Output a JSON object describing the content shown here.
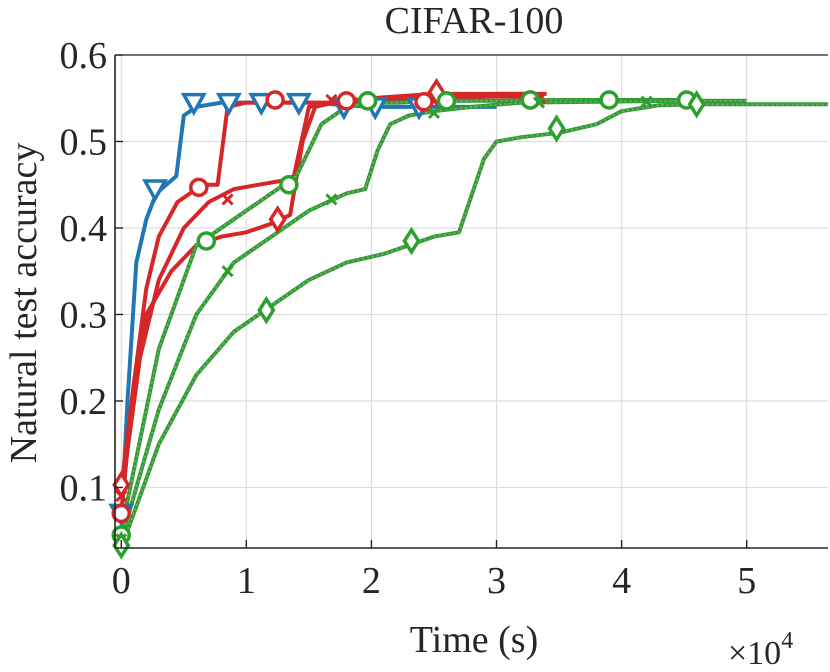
{
  "chart_data": {
    "type": "line",
    "title": "CIFAR-100",
    "xlabel": "Time (s)",
    "ylabel": "Natural test accuracy",
    "x_multiplier_label": "×10",
    "x_multiplier_exponent": "4",
    "xlim": [
      -0.05,
      5.65
    ],
    "ylim": [
      0.03,
      0.6
    ],
    "x_ticks": [
      0,
      1,
      2,
      3,
      4,
      5
    ],
    "x_tick_labels": [
      "0",
      "1",
      "2",
      "3",
      "4",
      "5"
    ],
    "y_ticks": [
      0.1,
      0.2,
      0.3,
      0.4,
      0.5,
      0.6
    ],
    "y_tick_labels": [
      "0.1",
      "0.2",
      "0.3",
      "0.4",
      "0.5",
      "0.6"
    ],
    "grid": true,
    "colors": {
      "blue": "#1f77b4",
      "red": "#d62728",
      "green": "#2ca02c",
      "axis": "#262626",
      "grid": "#dddddd"
    },
    "series": [
      {
        "name": "blue-triangle",
        "color": "#1f77b4",
        "style": "solid",
        "marker": "triangle",
        "x": [
          0,
          0.05,
          0.12,
          0.2,
          0.28,
          0.36,
          0.44,
          0.5,
          0.6,
          0.8,
          1.0,
          1.5,
          2.0,
          2.5,
          3.0
        ],
        "y": [
          0.06,
          0.2,
          0.36,
          0.41,
          0.44,
          0.45,
          0.46,
          0.53,
          0.54,
          0.545,
          0.545,
          0.545,
          0.54,
          0.54,
          0.54
        ],
        "marker_x": [
          0.0,
          0.27,
          0.58,
          0.86,
          1.12,
          1.42,
          1.78,
          2.03,
          2.38
        ],
        "marker_y": [
          0.07,
          0.445,
          0.545,
          0.545,
          0.545,
          0.545,
          0.54,
          0.54,
          0.54
        ]
      },
      {
        "name": "red-circle",
        "color": "#d62728",
        "style": "solid",
        "marker": "circle",
        "x": [
          0,
          0.1,
          0.2,
          0.3,
          0.45,
          0.6,
          0.7,
          0.77,
          0.85,
          1.0,
          1.3,
          1.8,
          2.5,
          3.0,
          3.4
        ],
        "y": [
          0.07,
          0.22,
          0.33,
          0.39,
          0.43,
          0.445,
          0.45,
          0.45,
          0.54,
          0.545,
          0.545,
          0.545,
          0.55,
          0.555,
          0.555
        ],
        "marker_x": [
          0.0,
          0.62,
          1.23,
          1.8,
          2.42,
          3.27
        ],
        "marker_y": [
          0.07,
          0.447,
          0.548,
          0.547,
          0.546,
          0.548
        ]
      },
      {
        "name": "red-cross",
        "color": "#d62728",
        "style": "solid",
        "marker": "cross",
        "x": [
          0,
          0.15,
          0.3,
          0.5,
          0.7,
          0.9,
          1.1,
          1.3,
          1.38,
          1.5,
          1.7,
          2.0,
          2.5,
          3.0,
          3.3
        ],
        "y": [
          0.09,
          0.25,
          0.34,
          0.4,
          0.43,
          0.445,
          0.45,
          0.455,
          0.46,
          0.54,
          0.545,
          0.548,
          0.55,
          0.552,
          0.552
        ],
        "marker_x": [
          0.0,
          0.85,
          1.68,
          2.55,
          3.35
        ],
        "marker_y": [
          0.09,
          0.433,
          0.548,
          0.549,
          0.55
        ]
      },
      {
        "name": "red-diamond",
        "color": "#d62728",
        "style": "solid",
        "marker": "diamond",
        "x": [
          0,
          0.1,
          0.2,
          0.4,
          0.6,
          0.8,
          1.0,
          1.2,
          1.35,
          1.45,
          1.55,
          1.7,
          2.0,
          2.5,
          3.0,
          3.3
        ],
        "y": [
          0.1,
          0.22,
          0.3,
          0.35,
          0.38,
          0.39,
          0.395,
          0.405,
          0.415,
          0.5,
          0.54,
          0.545,
          0.55,
          0.555,
          0.555,
          0.555
        ],
        "marker_x": [
          0.0,
          1.25,
          2.52
        ],
        "marker_y": [
          0.103,
          0.41,
          0.557
        ]
      },
      {
        "name": "green-circle",
        "color": "#2ca02c",
        "style": "dotted",
        "marker": "circle",
        "x": [
          0,
          0.3,
          0.6,
          0.9,
          1.2,
          1.4,
          1.6,
          1.8,
          2.0,
          2.2,
          2.4,
          2.6,
          3.0,
          3.5,
          4.0,
          4.6
        ],
        "y": [
          0.05,
          0.26,
          0.38,
          0.41,
          0.44,
          0.46,
          0.52,
          0.54,
          0.545,
          0.545,
          0.546,
          0.547,
          0.547,
          0.548,
          0.548,
          0.548
        ],
        "marker_x": [
          0.0,
          0.68,
          1.34,
          1.97,
          2.6,
          3.27,
          3.9,
          4.52
        ],
        "marker_y": [
          0.045,
          0.385,
          0.45,
          0.547,
          0.547,
          0.548,
          0.548,
          0.548
        ]
      },
      {
        "name": "green-cross",
        "color": "#2ca02c",
        "style": "dotted",
        "marker": "cross",
        "x": [
          0,
          0.3,
          0.6,
          0.9,
          1.2,
          1.5,
          1.8,
          1.95,
          2.05,
          2.15,
          2.3,
          2.5,
          2.8,
          3.2,
          3.8,
          4.5,
          5.0
        ],
        "y": [
          0.04,
          0.19,
          0.3,
          0.36,
          0.39,
          0.42,
          0.44,
          0.445,
          0.49,
          0.52,
          0.53,
          0.535,
          0.54,
          0.545,
          0.546,
          0.547,
          0.547
        ],
        "marker_x": [
          0.0,
          0.85,
          1.68,
          2.5,
          3.34,
          4.2
        ],
        "marker_y": [
          0.04,
          0.35,
          0.433,
          0.533,
          0.545,
          0.546
        ]
      },
      {
        "name": "green-diamond",
        "color": "#2ca02c",
        "style": "dotted",
        "marker": "diamond",
        "x": [
          0,
          0.3,
          0.6,
          0.9,
          1.2,
          1.5,
          1.8,
          2.1,
          2.3,
          2.5,
          2.7,
          2.9,
          3.0,
          3.2,
          3.5,
          3.8,
          4.0,
          4.3,
          4.6,
          5.0,
          5.65
        ],
        "y": [
          0.03,
          0.15,
          0.23,
          0.28,
          0.31,
          0.34,
          0.36,
          0.37,
          0.38,
          0.39,
          0.395,
          0.48,
          0.5,
          0.505,
          0.51,
          0.52,
          0.535,
          0.542,
          0.543,
          0.543,
          0.543
        ],
        "marker_x": [
          0.0,
          1.16,
          2.32,
          3.48,
          4.6
        ],
        "marker_y": [
          0.033,
          0.305,
          0.385,
          0.515,
          0.543
        ]
      }
    ]
  }
}
